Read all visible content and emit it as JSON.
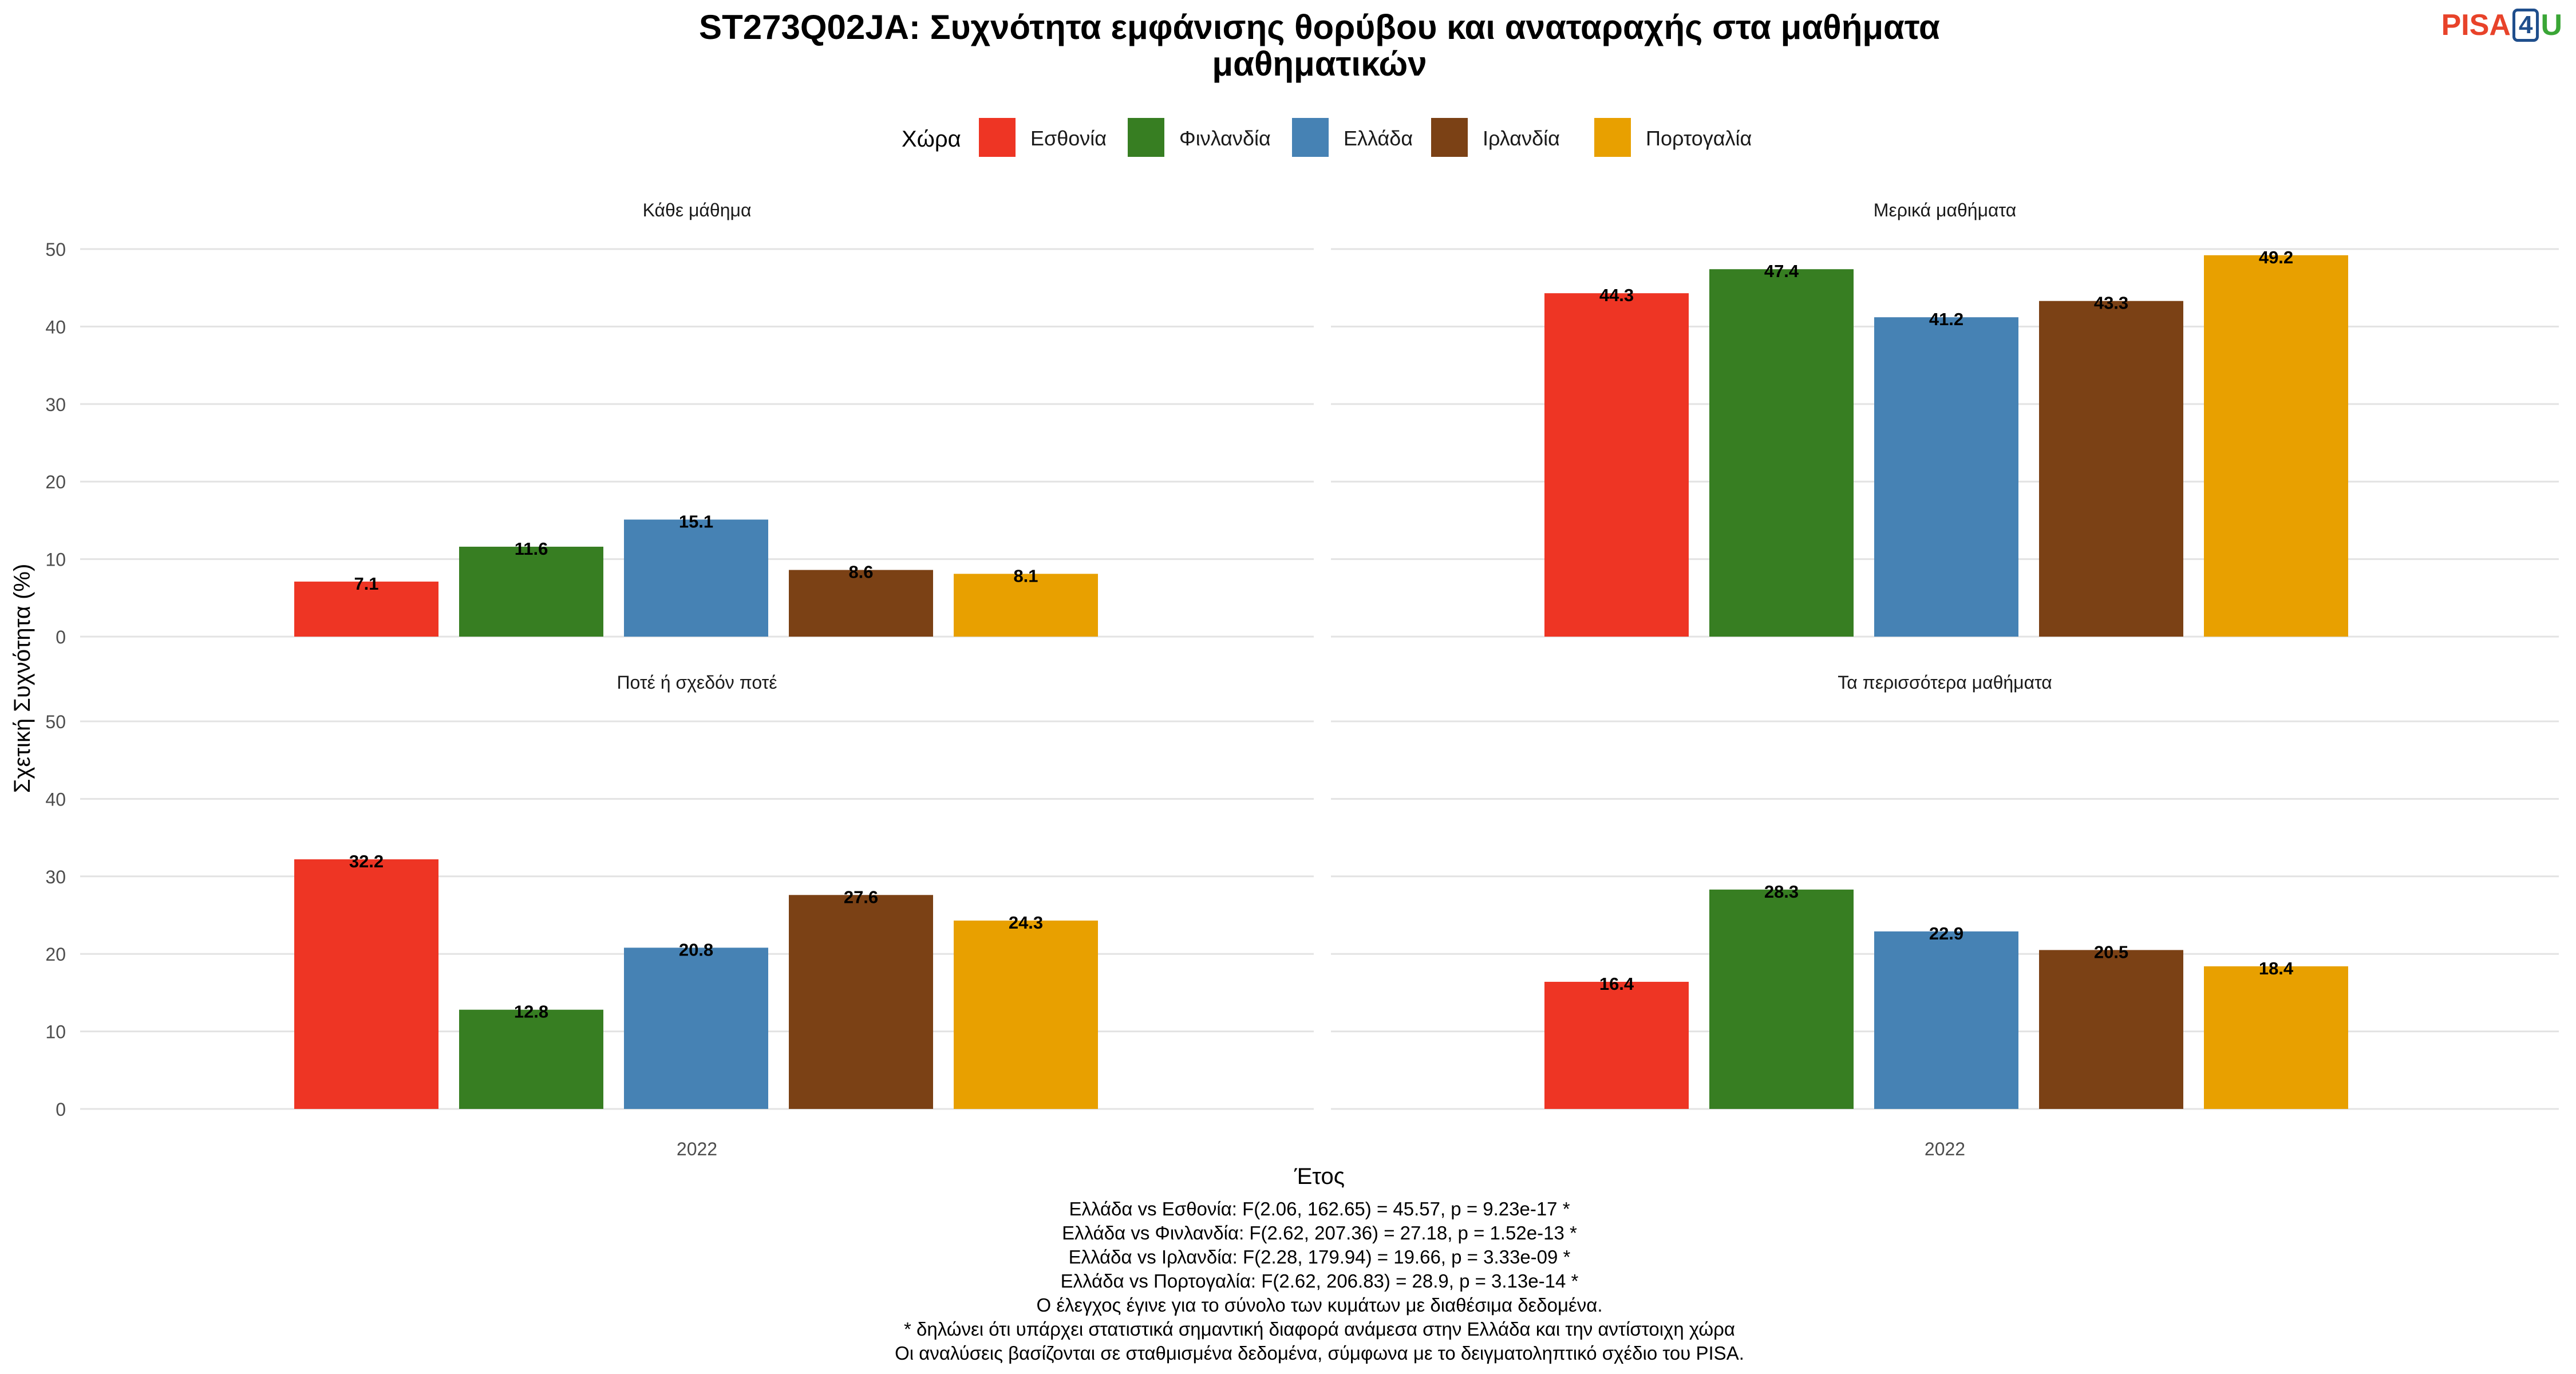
{
  "logo": {
    "part1": "PISA",
    "part2": "4",
    "part3": "U"
  },
  "chart_data": {
    "type": "bar",
    "title": "ST273Q02JA: Συχνότητα εμφάνισης θορύβου και αναταραχής στα μαθήματα μαθηματικών",
    "title_lines": [
      "ST273Q02JA: Συχνότητα εμφάνισης θορύβου και αναταραχής στα μαθήματα",
      "μαθηματικών"
    ],
    "xlabel": "Έτος",
    "ylabel": "Σχετική Συχνότητα (%)",
    "ylim": [
      0,
      50
    ],
    "yticks": [
      0,
      10,
      20,
      30,
      40,
      50
    ],
    "x_category": "2022",
    "legend_title": "Χώρα",
    "legend_position": "top",
    "grid": true,
    "series": [
      {
        "name": "Εσθονία",
        "color": "#EE3524"
      },
      {
        "name": "Φινλανδία",
        "color": "#377E22"
      },
      {
        "name": "Ελλάδα",
        "color": "#4682B4"
      },
      {
        "name": "Ιρλανδία",
        "color": "#7B4115"
      },
      {
        "name": "Πορτογαλία",
        "color": "#E8A000"
      }
    ],
    "panels": [
      {
        "label": "Κάθε μάθημα",
        "values": [
          7.1,
          11.6,
          15.1,
          8.6,
          8.1
        ]
      },
      {
        "label": "Μερικά μαθήματα",
        "values": [
          44.3,
          47.4,
          41.2,
          43.3,
          49.2
        ]
      },
      {
        "label": "Ποτέ ή σχεδόν ποτέ",
        "values": [
          32.2,
          12.8,
          20.8,
          27.6,
          24.3
        ]
      },
      {
        "label": "Τα περισσότερα μαθήματα",
        "values": [
          16.4,
          28.3,
          22.9,
          20.5,
          18.4
        ]
      }
    ],
    "footnotes": [
      "Ελλάδα vs Εσθονία: F(2.06, 162.65) = 45.57, p = 9.23e-17 *",
      "Ελλάδα vs Φινλανδία: F(2.62, 207.36) = 27.18, p = 1.52e-13 *",
      "Ελλάδα vs Ιρλανδία: F(2.28, 179.94) = 19.66, p = 3.33e-09 *",
      "Ελλάδα vs Πορτογαλία: F(2.62, 206.83) = 28.9, p = 3.13e-14 *",
      "Ο έλεγχος έγινε για το σύνολο των κυμάτων με διαθέσιμα δεδομένα.",
      "* δηλώνει ότι υπάρχει στατιστικά σημαντική διαφορά ανάμεσα στην Ελλάδα και την αντίστοιχη χώρα",
      "Οι αναλύσεις βασίζονται σε σταθμισμένα δεδομένα, σύμφωνα με το δειγματοληπτικό σχέδιο του PISA."
    ]
  }
}
